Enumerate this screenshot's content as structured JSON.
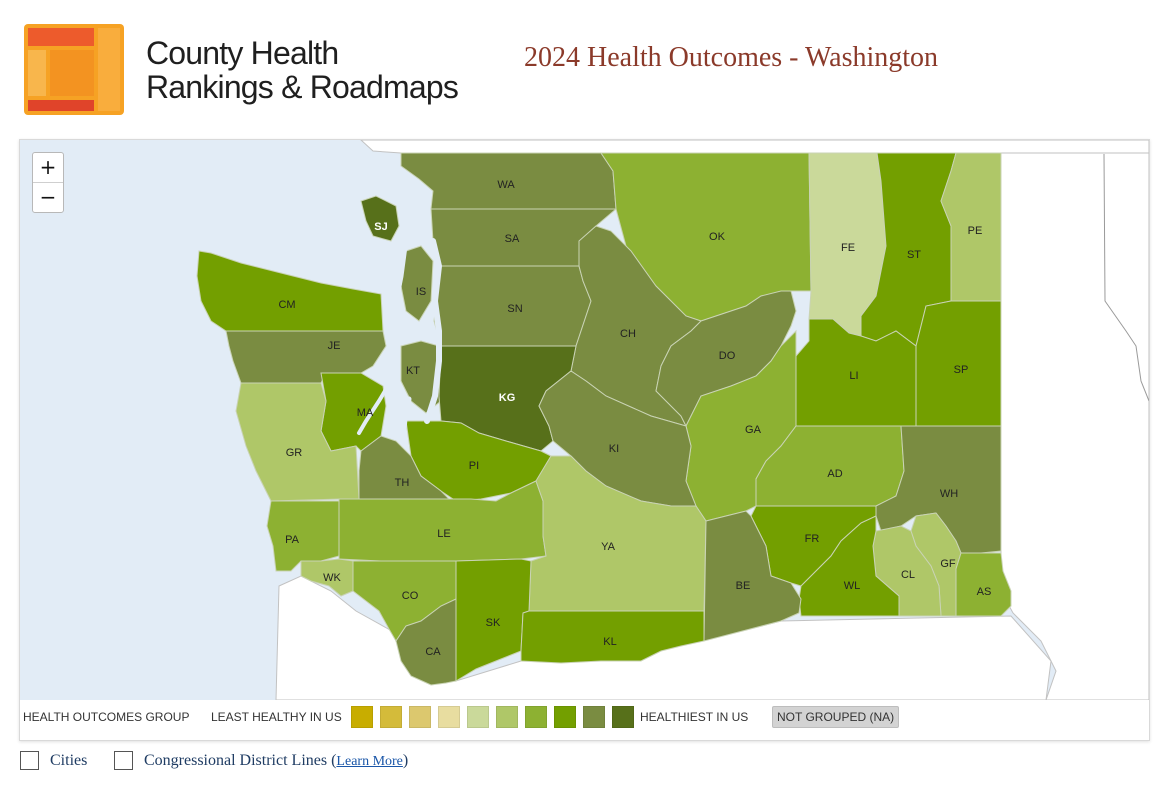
{
  "brand": {
    "line1": "County Health",
    "line2": "Rankings & Roadmaps"
  },
  "title": "2024 Health Outcomes - Washington",
  "zoom": {
    "in_label": "+",
    "out_label": "−"
  },
  "colors": {
    "g1": "#c8ad00",
    "g2": "#d4bb3a",
    "g3": "#dcc86e",
    "g4": "#e8dda0",
    "g5": "#cad99a",
    "g6": "#afc768",
    "g7": "#8db132",
    "g8": "#739f00",
    "g9": "#7a8c41",
    "g10": "#57701a",
    "na": "#d3d3d3",
    "water": "#e2ecf6",
    "land_outside": "#ffffff",
    "border": "#c2c2c2"
  },
  "legend": {
    "title": "HEALTH OUTCOMES GROUP",
    "least": "LEAST HEALTHY IN US",
    "healthiest": "HEALTHIEST IN US",
    "not_grouped": "NOT GROUPED (NA)",
    "swatches": [
      "g1",
      "g2",
      "g3",
      "g4",
      "g5",
      "g6",
      "g7",
      "g8",
      "g9",
      "g10"
    ]
  },
  "counties": [
    {
      "code": "WA",
      "group": "g9"
    },
    {
      "code": "SJ",
      "group": "g10"
    },
    {
      "code": "SA",
      "group": "g9"
    },
    {
      "code": "IS",
      "group": "g9"
    },
    {
      "code": "SN",
      "group": "g9"
    },
    {
      "code": "OK",
      "group": "g7"
    },
    {
      "code": "FE",
      "group": "g5"
    },
    {
      "code": "ST",
      "group": "g8"
    },
    {
      "code": "PE",
      "group": "g6"
    },
    {
      "code": "CM",
      "group": "g8"
    },
    {
      "code": "JE",
      "group": "g9"
    },
    {
      "code": "CH",
      "group": "g9"
    },
    {
      "code": "DO",
      "group": "g9"
    },
    {
      "code": "KT",
      "group": "g9"
    },
    {
      "code": "KG",
      "group": "g10"
    },
    {
      "code": "LI",
      "group": "g8"
    },
    {
      "code": "SP",
      "group": "g8"
    },
    {
      "code": "MA",
      "group": "g8"
    },
    {
      "code": "GR",
      "group": "g6"
    },
    {
      "code": "GA",
      "group": "g7"
    },
    {
      "code": "PI",
      "group": "g8"
    },
    {
      "code": "KI",
      "group": "g9"
    },
    {
      "code": "AD",
      "group": "g7"
    },
    {
      "code": "TH",
      "group": "g9"
    },
    {
      "code": "WH",
      "group": "g9"
    },
    {
      "code": "PA",
      "group": "g7"
    },
    {
      "code": "LE",
      "group": "g7"
    },
    {
      "code": "YA",
      "group": "g6"
    },
    {
      "code": "FR",
      "group": "g8"
    },
    {
      "code": "GF",
      "group": "g6"
    },
    {
      "code": "CL",
      "group": "g6"
    },
    {
      "code": "WK",
      "group": "g6"
    },
    {
      "code": "WL",
      "group": "g8"
    },
    {
      "code": "AS",
      "group": "g7"
    },
    {
      "code": "BE",
      "group": "g9"
    },
    {
      "code": "CO",
      "group": "g7"
    },
    {
      "code": "SK",
      "group": "g8"
    },
    {
      "code": "KL",
      "group": "g8"
    },
    {
      "code": "CA",
      "group": "g9"
    }
  ],
  "options": {
    "cities": "Cities",
    "districts": "Congressional District Lines",
    "learn_more": "Learn More",
    "open_paren": "(",
    "close_paren": ")"
  }
}
